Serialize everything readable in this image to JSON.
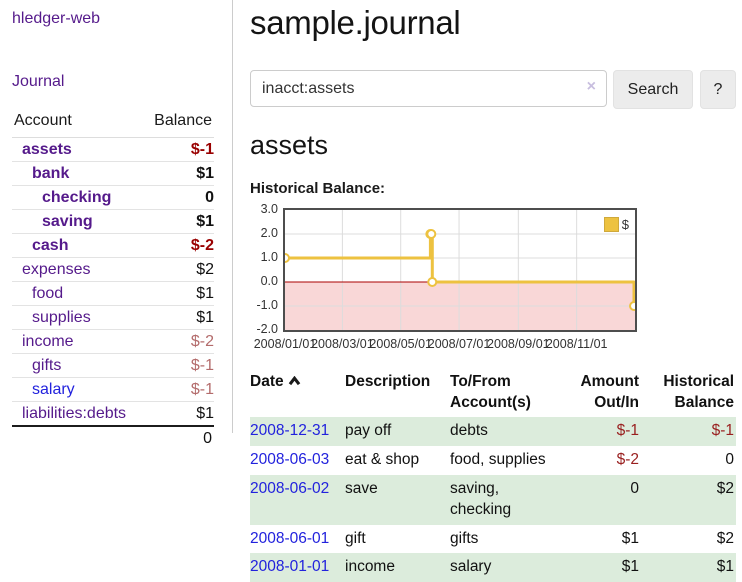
{
  "colors": {
    "link_purple": "#551A8B",
    "link_blue": "#2222dd",
    "negative_red": "#990000",
    "negative_muted": "#b36b6b",
    "row_green": "#dcecdc",
    "chart_gold": "#EDC240",
    "chart_negative_fill": "#f9d7d7",
    "chart_zero_line": "#aa0000",
    "chart_grid": "#dcdcdc"
  },
  "sidebar": {
    "app_title": "hledger-web",
    "journal_link": "Journal",
    "accounts": {
      "headers": {
        "account": "Account",
        "balance": "Balance"
      },
      "rows": [
        {
          "account": "assets",
          "balance": "$-1",
          "indent": 1,
          "bold": true,
          "negative": true,
          "muted": false,
          "unvisited": false
        },
        {
          "account": "bank",
          "balance": "$1",
          "indent": 2,
          "bold": true,
          "negative": false,
          "muted": false,
          "unvisited": false
        },
        {
          "account": "checking",
          "balance": "0",
          "indent": 3,
          "bold": true,
          "negative": false,
          "muted": false,
          "unvisited": false
        },
        {
          "account": "saving",
          "balance": "$1",
          "indent": 3,
          "bold": true,
          "negative": false,
          "muted": false,
          "unvisited": false
        },
        {
          "account": "cash",
          "balance": "$-2",
          "indent": 2,
          "bold": true,
          "negative": true,
          "muted": false,
          "unvisited": false
        },
        {
          "account": "expenses",
          "balance": "$2",
          "indent": 1,
          "bold": false,
          "negative": false,
          "muted": false,
          "unvisited": false
        },
        {
          "account": "food",
          "balance": "$1",
          "indent": 2,
          "bold": false,
          "negative": false,
          "muted": false,
          "unvisited": false
        },
        {
          "account": "supplies",
          "balance": "$1",
          "indent": 2,
          "bold": false,
          "negative": false,
          "muted": false,
          "unvisited": false
        },
        {
          "account": "income",
          "balance": "$-2",
          "indent": 1,
          "bold": false,
          "negative": true,
          "muted": true,
          "unvisited": false
        },
        {
          "account": "gifts",
          "balance": "$-1",
          "indent": 2,
          "bold": false,
          "negative": true,
          "muted": true,
          "unvisited": false
        },
        {
          "account": "salary",
          "balance": "$-1",
          "indent": 2,
          "bold": false,
          "negative": true,
          "muted": true,
          "unvisited": true
        },
        {
          "account": "liabilities:debts",
          "balance": "$1",
          "indent": 1,
          "bold": false,
          "negative": false,
          "muted": false,
          "unvisited": false
        }
      ],
      "total": "0"
    }
  },
  "main": {
    "title": "sample.journal",
    "search": {
      "value": "inacct:assets",
      "clear_icon": "×",
      "search_button": "Search",
      "help_button": "?"
    },
    "account_heading": "assets",
    "chart_title": "Historical Balance:"
  },
  "chart_data": {
    "type": "line",
    "step": true,
    "title": "Historical Balance",
    "legend": {
      "label": "$",
      "position": "top-right"
    },
    "x_range": [
      "2008-01-01",
      "2009-01-01"
    ],
    "ylim": [
      -2,
      3
    ],
    "yticks": [
      "3.0",
      "2.0",
      "1.0",
      "0.0",
      "-1.0",
      "-2.0"
    ],
    "xticks": [
      {
        "label": "2008/01/01",
        "date": "2008-01-01"
      },
      {
        "label": "2008/03/01",
        "date": "2008-03-01"
      },
      {
        "label": "2008/05/01",
        "date": "2008-05-01"
      },
      {
        "label": "2008/07/01",
        "date": "2008-07-01"
      },
      {
        "label": "2008/09/01",
        "date": "2008-09-01"
      },
      {
        "label": "2008/11/01",
        "date": "2008-11-01"
      }
    ],
    "series": [
      {
        "name": "$",
        "color": "#EDC240",
        "points": [
          {
            "date": "2008-01-01",
            "value": 1
          },
          {
            "date": "2008-06-01",
            "value": 2
          },
          {
            "date": "2008-06-02",
            "value": 2
          },
          {
            "date": "2008-06-03",
            "value": 0
          },
          {
            "date": "2008-12-31",
            "value": -1
          }
        ]
      }
    ],
    "grid": true,
    "negative_region_shaded": true
  },
  "register": {
    "headers": {
      "date": "Date",
      "description": "Description",
      "accounts": "To/From Account(s)",
      "amount": "Amount Out/In",
      "balance": "Historical Balance"
    },
    "sort_icon": "chevron-up",
    "rows": [
      {
        "date": "2008-12-31",
        "description": "pay off",
        "accounts": "debts",
        "amount": "$-1",
        "amount_negative": true,
        "balance": "$-1",
        "balance_negative": true
      },
      {
        "date": "2008-06-03",
        "description": "eat & shop",
        "accounts": "food, supplies",
        "amount": "$-2",
        "amount_negative": true,
        "balance": "0",
        "balance_negative": false
      },
      {
        "date": "2008-06-02",
        "description": "save",
        "accounts": "saving, checking",
        "amount": "0",
        "amount_negative": false,
        "balance": "$2",
        "balance_negative": false
      },
      {
        "date": "2008-06-01",
        "description": "gift",
        "accounts": "gifts",
        "amount": "$1",
        "amount_negative": false,
        "balance": "$2",
        "balance_negative": false
      },
      {
        "date": "2008-01-01",
        "description": "income",
        "accounts": "salary",
        "amount": "$1",
        "amount_negative": false,
        "balance": "$1",
        "balance_negative": false
      }
    ]
  }
}
